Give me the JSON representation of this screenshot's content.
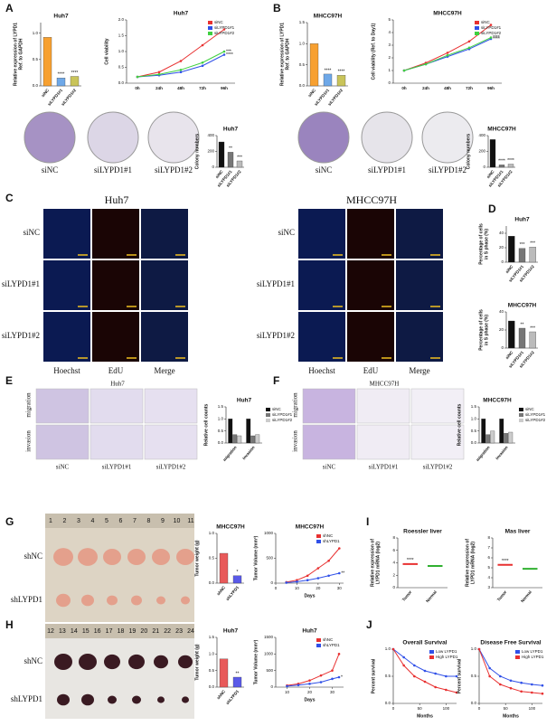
{
  "letters": [
    "A",
    "B",
    "C",
    "D",
    "E",
    "F",
    "G",
    "H",
    "I",
    "J"
  ],
  "A": {
    "plates": [
      "siNC",
      "siLYPD1#1",
      "siLYPD1#2"
    ]
  },
  "B": {
    "plates": [
      "siNC",
      "siLYPD1#1",
      "siLYPD1#2"
    ]
  },
  "C": {
    "titles": [
      "Huh7",
      "MHCC97H"
    ],
    "rows": [
      "siNC",
      "siLYPD1#1",
      "siLYPD1#2"
    ],
    "cols": [
      "Hoechst",
      "EdU",
      "Merge"
    ]
  },
  "E": {
    "title": "Huh7",
    "rows": [
      "migration",
      "invasion"
    ],
    "cols": [
      "siNC",
      "siLYPD1#1",
      "siLYPD1#2"
    ]
  },
  "F": {
    "title": "MHCC97H",
    "rows": [
      "migration",
      "invasion"
    ],
    "cols": [
      "siNC",
      "siLYPD1#1",
      "siLYPD1#2"
    ]
  },
  "G": {
    "rows": [
      "shNC",
      "shLYPD1"
    ],
    "ruler": [
      1,
      2,
      3,
      4,
      5,
      6,
      7,
      8,
      9,
      10,
      11
    ]
  },
  "H": {
    "rows": [
      "shNC",
      "shLYPD1"
    ],
    "ruler": [
      12,
      13,
      14,
      15,
      16,
      17,
      18,
      19,
      20,
      21,
      22,
      23,
      24
    ]
  },
  "charts": [
    {
      "type": "bar",
      "title": "Huh7",
      "ylabel": [
        "Relative expression of LYPD1",
        "Ref. to GAPDH"
      ],
      "categories": [
        "siNC",
        "siLYPD1#1",
        "siLYPD1#2"
      ],
      "values": [
        0.92,
        0.15,
        0.18
      ],
      "colors": [
        "#f7a030",
        "#6ea8e8",
        "#c9c45a"
      ],
      "ylim": [
        0,
        1.2
      ],
      "yticks": [
        {
          "value": 0,
          "label": "0.0"
        },
        {
          "value": 0.5,
          "label": "0.5"
        },
        {
          "value": 1,
          "label": "1.0"
        }
      ],
      "annotations": [
        {
          "index": 1,
          "text": "****"
        },
        {
          "index": 2,
          "text": "****"
        }
      ]
    },
    {
      "type": "line",
      "title": "Huh7",
      "ylabel": [
        "Cell viability"
      ],
      "categories": [
        "0h",
        "24h",
        "48h",
        "72h",
        "96h"
      ],
      "series": [
        {
          "name": "siNC",
          "color": "#e83030",
          "values": [
            0.2,
            0.35,
            0.7,
            1.2,
            1.7
          ]
        },
        {
          "name": "siLYPD1#1",
          "color": "#3050e8",
          "values": [
            0.2,
            0.25,
            0.35,
            0.55,
            0.9
          ]
        },
        {
          "name": "siLYPD1#2",
          "color": "#40d040",
          "values": [
            0.2,
            0.28,
            0.42,
            0.65,
            1.0
          ]
        }
      ],
      "ylim": [
        0,
        2
      ],
      "yticks": [
        {
          "value": 0,
          "label": "0.0"
        },
        {
          "value": 0.5,
          "label": "0.5"
        },
        {
          "value": 1,
          "label": "1.0"
        },
        {
          "value": 1.5,
          "label": "1.5"
        },
        {
          "value": 2,
          "label": "2.0"
        }
      ],
      "annotations": [
        {
          "series": 2,
          "text": "***"
        },
        {
          "series": 1,
          "text": "****"
        }
      ]
    },
    {
      "type": "bar",
      "title": "Huh7",
      "ylabel": [
        "Colony numbers"
      ],
      "categories": [
        "siNC",
        "siLYPD1#1",
        "siLYPD1#2"
      ],
      "values": [
        320,
        190,
        80
      ],
      "colors": [
        "#111111",
        "#777777",
        "#bbbbbb"
      ],
      "ylim": [
        0,
        400
      ],
      "yticks": [
        0,
        200,
        400
      ],
      "annotations": [
        {
          "index": 1,
          "text": "**"
        },
        {
          "index": 2,
          "text": "***"
        }
      ]
    },
    {
      "type": "bar",
      "title": "MHCC97H",
      "ylabel": [
        "Relative expression of LYPD1",
        "Ref. to GAPDH"
      ],
      "categories": [
        "siNC",
        "siLYPD1#1",
        "siLYPD1#2"
      ],
      "values": [
        1.0,
        0.28,
        0.25
      ],
      "colors": [
        "#f7a030",
        "#6ea8e8",
        "#c9c45a"
      ],
      "ylim": [
        0,
        1.5
      ],
      "yticks": [
        {
          "value": 0,
          "label": "0.0"
        },
        {
          "value": 0.5,
          "label": "0.5"
        },
        {
          "value": 1,
          "label": "1.0"
        },
        {
          "value": 1.5,
          "label": "1.5"
        }
      ],
      "annotations": [
        {
          "index": 1,
          "text": "****"
        },
        {
          "index": 2,
          "text": "****"
        }
      ]
    },
    {
      "type": "line",
      "title": "MHCC97H",
      "ylabel": [
        "Cell viability (Ref. to Day1)"
      ],
      "categories": [
        "0h",
        "24h",
        "48h",
        "72h",
        "96h"
      ],
      "series": [
        {
          "name": "siNC",
          "color": "#e83030",
          "values": [
            1,
            1.6,
            2.4,
            3.3,
            4.6
          ]
        },
        {
          "name": "siLYPD1#1",
          "color": "#3050e8",
          "values": [
            1,
            1.5,
            2.1,
            2.7,
            3.5
          ]
        },
        {
          "name": "siLYPD1#2",
          "color": "#40d040",
          "values": [
            1,
            1.5,
            2.2,
            2.8,
            3.6
          ]
        }
      ],
      "ylim": [
        0,
        5
      ],
      "yticks": [
        0,
        1,
        2,
        3,
        4,
        5
      ],
      "annotations": [
        {
          "series": 2,
          "text": "****"
        },
        {
          "series": 1,
          "text": "****"
        }
      ]
    },
    {
      "type": "bar",
      "title": "MHCC97H",
      "ylabel": [
        "Colony numbers"
      ],
      "categories": [
        "siNC",
        "siLYPD1#1",
        "siLYPD1#2"
      ],
      "values": [
        350,
        30,
        40
      ],
      "colors": [
        "#111111",
        "#777777",
        "#bbbbbb"
      ],
      "ylim": [
        0,
        400
      ],
      "yticks": [
        0,
        200,
        400
      ],
      "annotations": [
        {
          "index": 1,
          "text": "****"
        },
        {
          "index": 2,
          "text": "****"
        }
      ]
    },
    {
      "type": "bar",
      "title": "Huh7",
      "ylabel": [
        "Percentage of cells",
        "in S phase (%)"
      ],
      "categories": [
        "siNC",
        "siLYPD1#1",
        "siLYPD1#2"
      ],
      "values": [
        36,
        19,
        21
      ],
      "colors": [
        "#111111",
        "#777777",
        "#bbbbbb"
      ],
      "ylim": [
        0,
        50
      ],
      "yticks": [
        0,
        20,
        40
      ],
      "annotations": [
        {
          "index": 1,
          "text": "***"
        },
        {
          "index": 2,
          "text": "***"
        }
      ]
    },
    {
      "type": "bar",
      "title": "MHCC97H",
      "ylabel": [
        "Percentage of cells",
        "in S phase (%)"
      ],
      "categories": [
        "siNC",
        "siLYPD1#1",
        "siLYPD1#2"
      ],
      "values": [
        30,
        22,
        18
      ],
      "colors": [
        "#111111",
        "#777777",
        "#bbbbbb"
      ],
      "ylim": [
        0,
        40
      ],
      "yticks": [
        0,
        20,
        40
      ],
      "annotations": [
        {
          "index": 1,
          "text": "**"
        },
        {
          "index": 2,
          "text": "***"
        }
      ]
    },
    {
      "type": "bar",
      "title": "Huh7",
      "ylabel": [
        "Relative cell counts"
      ],
      "categories": [
        "migration",
        "invasion"
      ],
      "series": [
        {
          "name": "siNC",
          "color": "#111111",
          "values": [
            1,
            1
          ]
        },
        {
          "name": "siLYPD1#1",
          "color": "#777777",
          "values": [
            0.35,
            0.3
          ]
        },
        {
          "name": "siLYPD1#2",
          "color": "#cccccc",
          "values": [
            0.3,
            0.35
          ]
        }
      ],
      "ylim": [
        0,
        1.5
      ],
      "yticks": [
        {
          "value": 0,
          "label": "0.0"
        },
        {
          "value": 0.5,
          "label": "0.5"
        },
        {
          "value": 1,
          "label": "1.0"
        },
        {
          "value": 1.5,
          "label": "1.5"
        }
      ]
    },
    {
      "type": "bar",
      "title": "MHCC97H",
      "ylabel": [
        "Relative cell counts"
      ],
      "categories": [
        "migration",
        "invasion"
      ],
      "series": [
        {
          "name": "siNC",
          "color": "#111111",
          "values": [
            1,
            1
          ]
        },
        {
          "name": "siLYPD1#1",
          "color": "#777777",
          "values": [
            0.35,
            0.4
          ]
        },
        {
          "name": "siLYPD1#2",
          "color": "#cccccc",
          "values": [
            0.5,
            0.45
          ]
        }
      ],
      "ylim": [
        0,
        1.5
      ],
      "yticks": [
        {
          "value": 0,
          "label": "0.0"
        },
        {
          "value": 0.5,
          "label": "0.5"
        },
        {
          "value": 1,
          "label": "1.0"
        },
        {
          "value": 1.5,
          "label": "1.5"
        }
      ]
    },
    {
      "type": "bar",
      "title": "MHCC97H",
      "ylabel": [
        "Tumor weight (g)"
      ],
      "categories": [
        "shNC",
        "shLYPD1"
      ],
      "values": [
        0.6,
        0.15
      ],
      "colors": [
        "#e85a5a",
        "#5a5ae8"
      ],
      "ylim": [
        0,
        1.0
      ],
      "yticks": [
        {
          "value": 0,
          "label": "0.0"
        },
        {
          "value": 0.5,
          "label": "0.5"
        },
        {
          "value": 1,
          "label": "1.0"
        }
      ],
      "annotations": [
        {
          "index": 1,
          "text": "*"
        }
      ]
    },
    {
      "type": "line",
      "title": "MHCC97H",
      "ylabel": [
        "Tumor Volume (mm³)"
      ],
      "xlabel": "Days",
      "x": [
        5,
        10,
        15,
        20,
        25,
        30
      ],
      "series": [
        {
          "name": "shNC",
          "color": "#e83030",
          "values": [
            20,
            60,
            150,
            300,
            450,
            700
          ]
        },
        {
          "name": "shLYPD1",
          "color": "#3050e8",
          "values": [
            10,
            30,
            60,
            100,
            150,
            200
          ]
        }
      ],
      "xlim": [
        0,
        32
      ],
      "xticks": [
        0,
        10,
        20,
        30
      ],
      "ylim": [
        0,
        1000
      ],
      "yticks": [
        0,
        500,
        1000
      ],
      "annotations": [
        {
          "series": 1,
          "text": "**"
        }
      ]
    },
    {
      "type": "bar",
      "title": "Huh7",
      "ylabel": [
        "Tumor weight (g)"
      ],
      "categories": [
        "shNC",
        "shLYPD1"
      ],
      "values": [
        0.85,
        0.3
      ],
      "colors": [
        "#e85a5a",
        "#5a5ae8"
      ],
      "ylim": [
        0,
        1.5
      ],
      "yticks": [
        {
          "value": 0,
          "label": "0.0"
        },
        {
          "value": 0.5,
          "label": "0.5"
        },
        {
          "value": 1,
          "label": "1.0"
        },
        {
          "value": 1.5,
          "label": "1.5"
        }
      ],
      "annotations": [
        {
          "index": 1,
          "text": "**"
        }
      ]
    },
    {
      "type": "line",
      "title": "Huh7",
      "ylabel": [
        "Tumor Volume (mm³)"
      ],
      "xlabel": "Days",
      "x": [
        10,
        15,
        20,
        25,
        30,
        33
      ],
      "series": [
        {
          "name": "shNC",
          "color": "#e83030",
          "values": [
            50,
            100,
            200,
            350,
            500,
            1000
          ]
        },
        {
          "name": "shLYPD1",
          "color": "#3050e8",
          "values": [
            30,
            60,
            100,
            150,
            250,
            300
          ]
        }
      ],
      "xlim": [
        5,
        35
      ],
      "xticks": [
        10,
        20,
        30
      ],
      "ylim": [
        0,
        1500
      ],
      "yticks": [
        0,
        500,
        1000,
        1500
      ],
      "annotations": [
        {
          "series": 1,
          "text": "*"
        }
      ]
    },
    {
      "type": "strip",
      "title": "Roessler liver",
      "ylabel": [
        "Relative expression of",
        "LYPD1 mRNA (log2)"
      ],
      "categories": [
        "Tumor",
        "Normal"
      ],
      "values": [
        3.8,
        3.5
      ],
      "colors": [
        "#e83030",
        "#30b030"
      ],
      "ylim": [
        0,
        8
      ],
      "yticks": [
        0,
        2,
        4,
        6,
        8
      ],
      "annotations": [
        {
          "index": 0,
          "text": "****"
        }
      ]
    },
    {
      "type": "strip",
      "title": "Mas liver",
      "ylabel": [
        "Relative expression of",
        "LYPD1 mRNA (log2)"
      ],
      "categories": [
        "Tumor",
        "Normal"
      ],
      "values": [
        5.3,
        4.9
      ],
      "colors": [
        "#e83030",
        "#30b030"
      ],
      "ylim": [
        3,
        8
      ],
      "yticks": [
        3,
        4,
        5,
        6,
        7,
        8
      ],
      "annotations": [
        {
          "index": 0,
          "text": "****"
        }
      ]
    },
    {
      "type": "line",
      "title": "Overall Survival",
      "ylabel": [
        "Percent survival"
      ],
      "xlabel": "Months",
      "x": [
        0,
        20,
        40,
        60,
        80,
        100,
        120
      ],
      "series": [
        {
          "name": "Low LYPD1",
          "color": "#3050e8",
          "values": [
            1,
            0.85,
            0.7,
            0.6,
            0.55,
            0.5,
            0.5
          ]
        },
        {
          "name": "High LYPD1",
          "color": "#e83030",
          "values": [
            1,
            0.7,
            0.5,
            0.4,
            0.3,
            0.25,
            0.2
          ]
        }
      ],
      "xlim": [
        0,
        120
      ],
      "xticks": [
        0,
        50,
        100
      ],
      "ylim": [
        0,
        1
      ],
      "yticks": [
        {
          "value": 0,
          "label": "0.0"
        },
        {
          "value": 0.5,
          "label": "0.5"
        },
        {
          "value": 1,
          "label": "1.0"
        }
      ]
    },
    {
      "type": "line",
      "title": "Disease Free Survival",
      "ylabel": [
        "Percent survival"
      ],
      "xlabel": "Months",
      "x": [
        0,
        20,
        40,
        60,
        80,
        100,
        120
      ],
      "series": [
        {
          "name": "Low LYPD1",
          "color": "#3050e8",
          "values": [
            1,
            0.65,
            0.5,
            0.42,
            0.38,
            0.35,
            0.33
          ]
        },
        {
          "name": "High LYPD1",
          "color": "#e83030",
          "values": [
            1,
            0.5,
            0.35,
            0.28,
            0.22,
            0.2,
            0.18
          ]
        }
      ],
      "xlim": [
        0,
        120
      ],
      "xticks": [
        0,
        50,
        100
      ],
      "ylim": [
        0,
        1
      ],
      "yticks": [
        {
          "value": 0,
          "label": "0.0"
        },
        {
          "value": 0.5,
          "label": "0.5"
        },
        {
          "value": 1,
          "label": "1.0"
        }
      ]
    }
  ]
}
